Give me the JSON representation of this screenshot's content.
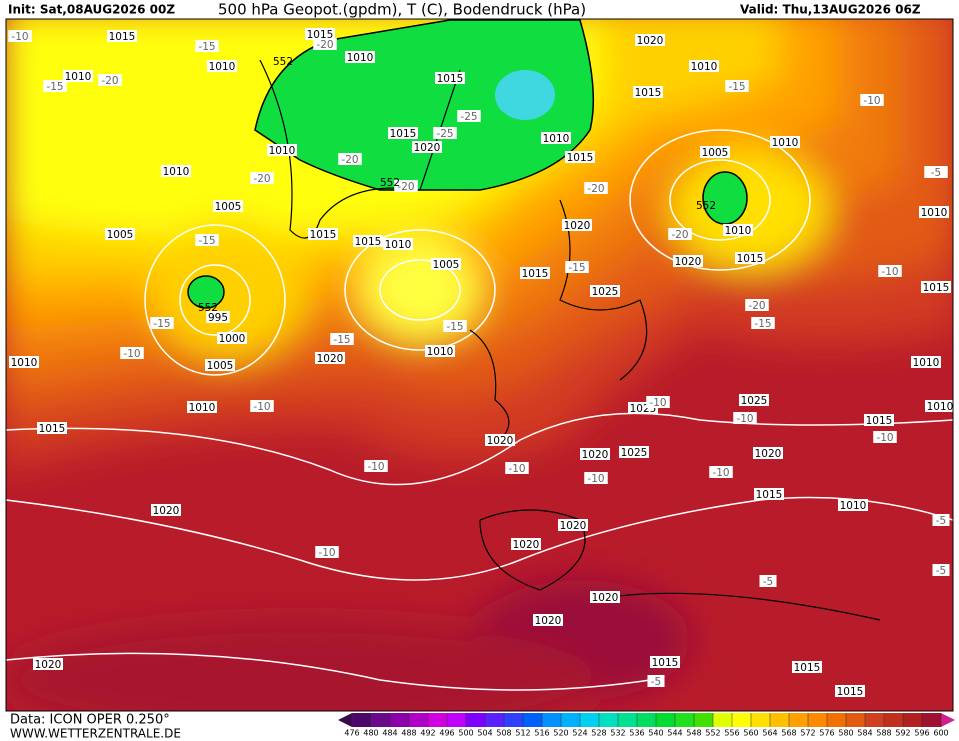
{
  "header": {
    "init": "Init: Sat,08AUG2026 00Z",
    "title": "500 hPa Geopot.(gpdm), T (C), Bodendruck (hPa)",
    "valid": "Valid: Thu,13AUG2026 06Z"
  },
  "footer": {
    "data": "Data: ICON OPER 0.250°",
    "site": "WWW.WETTERZENTRALE.DE"
  },
  "colorbar": {
    "ticks": [
      476,
      480,
      484,
      488,
      492,
      496,
      500,
      504,
      508,
      512,
      516,
      520,
      524,
      528,
      532,
      536,
      540,
      544,
      548,
      552,
      556,
      560,
      564,
      568,
      572,
      576,
      580,
      584,
      588,
      592,
      596,
      600
    ],
    "colors": [
      "#3a0a4a",
      "#4b0a6a",
      "#6a0a8a",
      "#8a00aa",
      "#b000c8",
      "#d000e0",
      "#c000ff",
      "#8000ff",
      "#5a20ff",
      "#3040ff",
      "#0060ff",
      "#0090ff",
      "#00b0ff",
      "#00d0f0",
      "#00e0c0",
      "#00e090",
      "#00dd60",
      "#00dd30",
      "#20e020",
      "#40e000",
      "#e0ff00",
      "#ffff00",
      "#ffe000",
      "#ffc000",
      "#ffa000",
      "#ff8800",
      "#f07000",
      "#e05a10",
      "#d04020",
      "#c03020",
      "#b02020",
      "#a01030",
      "#d02090"
    ]
  },
  "map": {
    "pressure_labels": [
      "1015",
      "1010",
      "1010",
      "1015",
      "1010",
      "1015",
      "1015",
      "1020",
      "1010",
      "1010",
      "1005",
      "1005",
      "1015",
      "1015",
      "1010",
      "1005",
      "995",
      "1000",
      "1005",
      "1010",
      "1010",
      "1015",
      "1020",
      "1010",
      "1020",
      "1020",
      "1020",
      "1015",
      "1020",
      "1025",
      "1010",
      "1015",
      "1020",
      "1010",
      "1015",
      "1010",
      "1005",
      "1010",
      "1020",
      "1015",
      "1010",
      "1015",
      "1010",
      "1015",
      "1010",
      "1025",
      "1025",
      "1020",
      "1020",
      "1025",
      "1015",
      "1010",
      "1020",
      "1020",
      "1020",
      "1020",
      "1015",
      "1015",
      "1015"
    ],
    "temperature_labels": [
      "-10",
      "-15",
      "-20",
      "-15",
      "-20",
      "-25",
      "-25",
      "-20",
      "-20",
      "-20",
      "-15",
      "-15",
      "-10",
      "-15",
      "-15",
      "-10",
      "-10",
      "-15",
      "-20",
      "-20",
      "-20",
      "-15",
      "-15",
      "-10",
      "-10",
      "-10",
      "-10",
      "-10",
      "-10",
      "-10",
      "-10",
      "-10",
      "-10",
      "-5",
      "-5",
      "-5",
      "-5",
      "-5"
    ],
    "height_labels": [
      "552",
      "552",
      "552",
      "552"
    ]
  }
}
